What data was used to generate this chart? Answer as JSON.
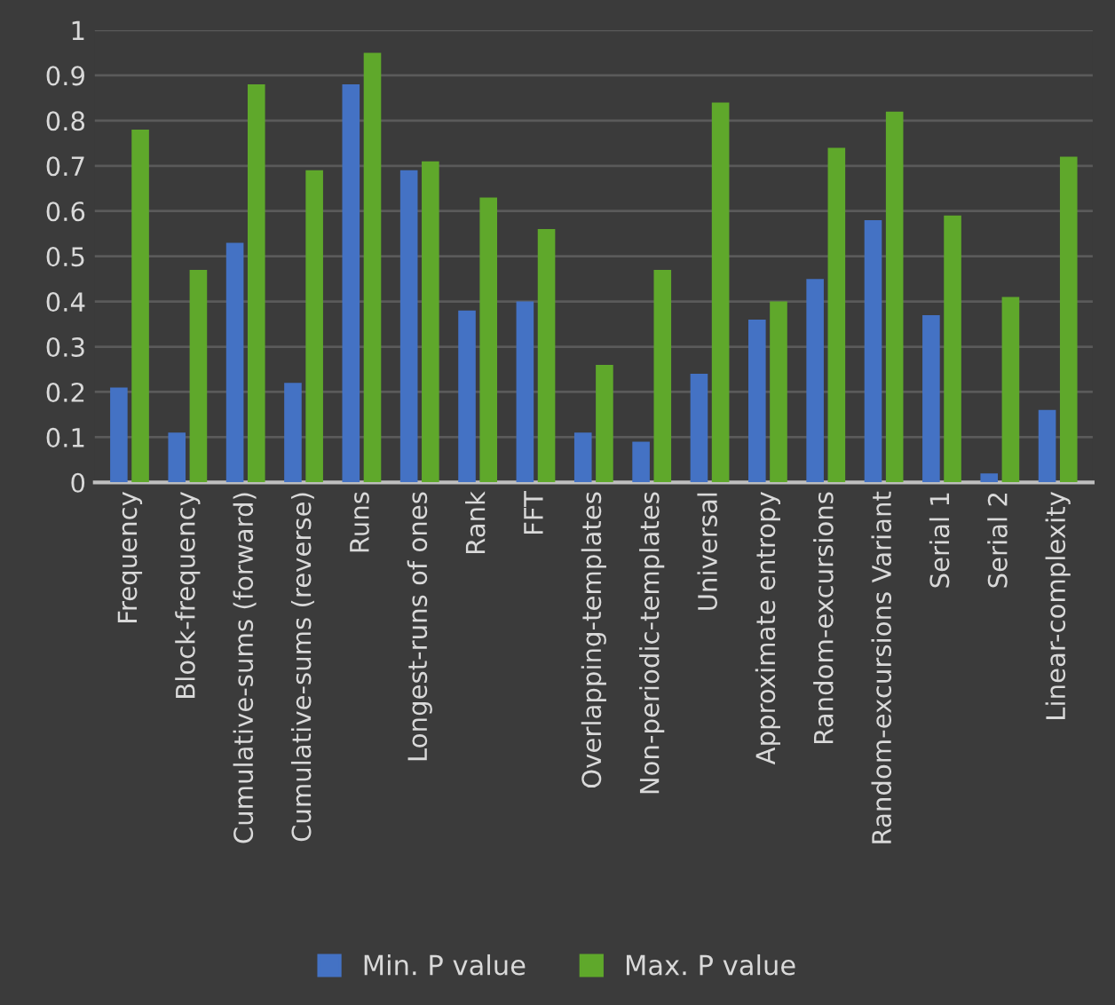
{
  "chart_data": {
    "type": "bar",
    "categories": [
      "Frequency",
      "Block-frequency",
      "Cumulative-sums (forward)",
      "Cumulative-sums (reverse)",
      "Runs",
      "Longest-runs of ones",
      "Rank",
      "FFT",
      "Overlapping-templates",
      "Non-periodic-templates",
      "Universal",
      "Approximate entropy",
      "Random-excursions",
      "Random-excursions Variant",
      "Serial 1",
      "Serial 2",
      "Linear-complexity"
    ],
    "series": [
      {
        "name": "Min. P value",
        "color": "#4472c4",
        "values": [
          0.21,
          0.11,
          0.53,
          0.22,
          0.88,
          0.69,
          0.38,
          0.4,
          0.11,
          0.09,
          0.24,
          0.36,
          0.45,
          0.58,
          0.37,
          0.02,
          0.16
        ]
      },
      {
        "name": "Max. P value",
        "color": "#5fa82b",
        "values": [
          0.78,
          0.47,
          0.88,
          0.69,
          0.95,
          0.71,
          0.63,
          0.56,
          0.26,
          0.47,
          0.84,
          0.4,
          0.74,
          0.82,
          0.59,
          0.41,
          0.72
        ]
      }
    ],
    "ylim": [
      0,
      1
    ],
    "yticks": [
      0,
      0.1,
      0.2,
      0.3,
      0.4,
      0.5,
      0.6,
      0.7,
      0.8,
      0.9,
      1
    ],
    "grid": "y",
    "legend": "bottom"
  }
}
